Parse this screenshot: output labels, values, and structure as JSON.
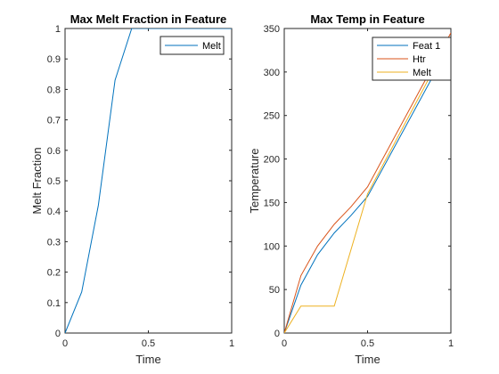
{
  "chart_data": [
    {
      "type": "line",
      "title": "Max Melt Fraction in Feature",
      "xlabel": "Time",
      "ylabel": "Melt Fraction",
      "xlim": [
        0,
        1
      ],
      "ylim": [
        0,
        1
      ],
      "xticks": [
        0,
        0.5,
        1
      ],
      "yticks": [
        0,
        0.1,
        0.2,
        0.3,
        0.4,
        0.5,
        0.6,
        0.7,
        0.8,
        0.9,
        1
      ],
      "xtick_labels": [
        "0",
        "0.5",
        "1"
      ],
      "ytick_labels": [
        "0",
        "0.1",
        "0.2",
        "0.3",
        "0.4",
        "0.5",
        "0.6",
        "0.7",
        "0.8",
        "0.9",
        "1"
      ],
      "grid": false,
      "legend_position": "top-right",
      "series": [
        {
          "name": "Melt",
          "color": "#0072BD",
          "x": [
            0,
            0.1,
            0.2,
            0.3,
            0.4,
            0.5,
            1.0
          ],
          "y": [
            0,
            0.135,
            0.42,
            0.83,
            1.0,
            1.0,
            1.0
          ]
        }
      ]
    },
    {
      "type": "line",
      "title": "Max Temp in Feature",
      "xlabel": "Time",
      "ylabel": "Temperature",
      "xlim": [
        0,
        1
      ],
      "ylim": [
        0,
        350
      ],
      "xticks": [
        0,
        0.5,
        1
      ],
      "yticks": [
        0,
        50,
        100,
        150,
        200,
        250,
        300,
        350
      ],
      "xtick_labels": [
        "0",
        "0.5",
        "1"
      ],
      "ytick_labels": [
        "0",
        "50",
        "100",
        "150",
        "200",
        "250",
        "300",
        "350"
      ],
      "grid": false,
      "legend_position": "top-right",
      "series": [
        {
          "name": "Feat 1",
          "color": "#0072BD",
          "x": [
            0,
            0.1,
            0.2,
            0.3,
            0.4,
            0.5,
            1.0
          ],
          "y": [
            0,
            55,
            90,
            115,
            135,
            157,
            333
          ]
        },
        {
          "name": "Htr",
          "color": "#D95319",
          "x": [
            0,
            0.1,
            0.2,
            0.3,
            0.4,
            0.5,
            1.0
          ],
          "y": [
            0,
            66,
            100,
            125,
            145,
            168,
            345
          ]
        },
        {
          "name": "Melt",
          "color": "#EDB120",
          "x": [
            0,
            0.1,
            0.2,
            0.3,
            0.5,
            1.0
          ],
          "y": [
            0,
            31,
            31,
            31,
            160,
            340
          ]
        }
      ]
    }
  ]
}
